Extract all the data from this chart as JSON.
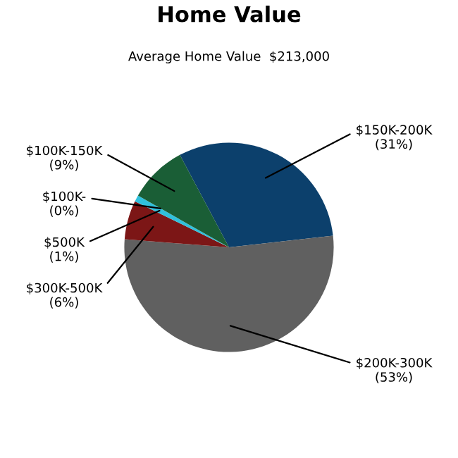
{
  "chart_data": {
    "type": "pie",
    "title": "Home Value",
    "subtitle": "Average Home Value  $213,000",
    "categories": [
      "$150K-200K",
      "$200K-300K",
      "$300K-500K",
      "$500K",
      "$100K-",
      "$100K-150K"
    ],
    "values": [
      31,
      53,
      6,
      1,
      0,
      9
    ],
    "value_labels": [
      "(31%)",
      "(53%)",
      "(6%)",
      "(1%)",
      "(0%)",
      "(9%)"
    ],
    "colors": [
      "#0c406c",
      "#606060",
      "#7c1616",
      "#30c0dc",
      "#a0a0a0",
      "#1a5e36"
    ]
  }
}
